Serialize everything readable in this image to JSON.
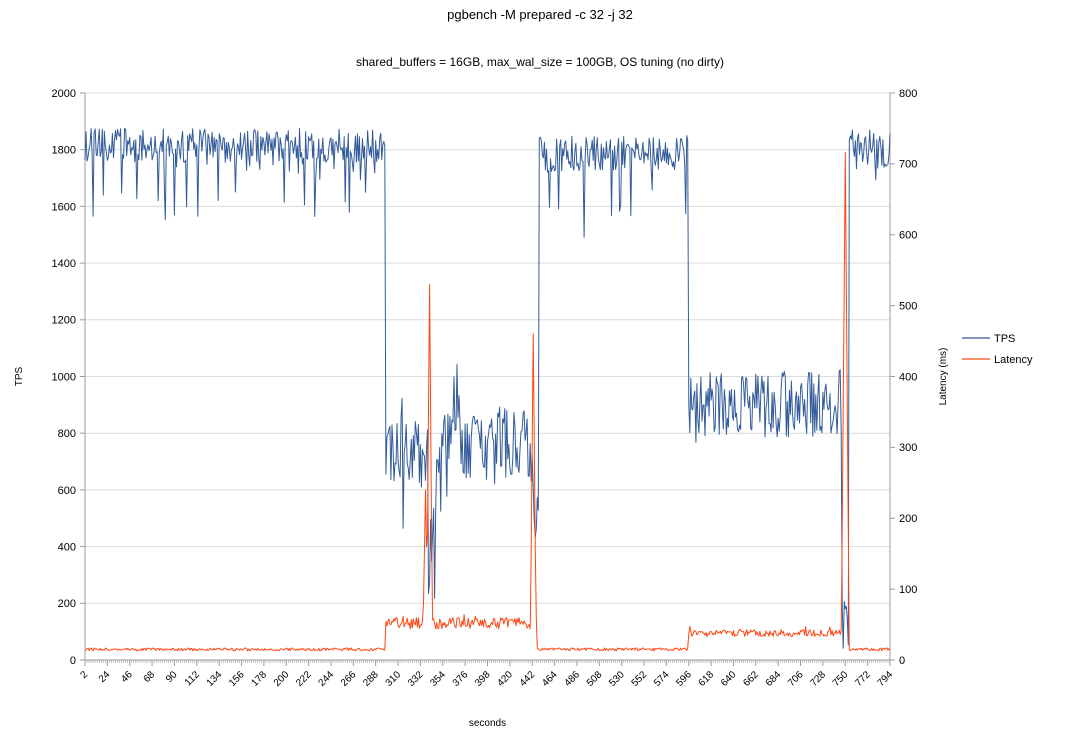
{
  "chart_data": {
    "type": "line",
    "title": "pgbench -M prepared -c 32 -j 32",
    "subtitle": "shared_buffers = 16GB, max_wal_size = 100GB, OS tuning (no dirty)",
    "xlabel": "seconds",
    "ylabel_left": "TPS",
    "ylabel_right": "Latency (ms)",
    "x_range": [
      2,
      794
    ],
    "x_step": 1,
    "x_minor_tick_step": 2,
    "x_tick_labels": [
      2,
      24,
      46,
      68,
      90,
      112,
      134,
      156,
      178,
      200,
      222,
      244,
      266,
      288,
      310,
      332,
      354,
      376,
      398,
      420,
      442,
      464,
      486,
      508,
      530,
      552,
      574,
      596,
      618,
      640,
      662,
      684,
      706,
      728,
      750,
      772,
      794
    ],
    "ylim_left": [
      0,
      2000
    ],
    "y_tick_labels_left": [
      0,
      200,
      400,
      600,
      800,
      1000,
      1200,
      1400,
      1600,
      1800,
      2000
    ],
    "ylim_right": [
      0,
      800
    ],
    "y_tick_labels_right": [
      0,
      100,
      200,
      300,
      400,
      500,
      600,
      700,
      800
    ],
    "grid": "horizontal",
    "legend": {
      "position": "right",
      "entries": [
        "TPS",
        "Latency"
      ]
    },
    "colors": {
      "grid": "#dcdcdc",
      "axis": "#9c9c9c",
      "text": "#000000",
      "tps": "#335b9b",
      "latency": "#ff4713"
    },
    "series": [
      {
        "name": "TPS",
        "axis": "left",
        "color": "#335b9b",
        "segments": [
          {
            "from": 2,
            "to": 297,
            "base": 1815,
            "noise": 60,
            "dip_chance": 0.1,
            "dip_depth": 260
          },
          {
            "from": 298,
            "to": 339,
            "base": 755,
            "noise": 130,
            "dip_chance": 0.05,
            "dip_depth": 220,
            "up_chance": 0.04,
            "up_height": 200
          },
          {
            "from": 340,
            "to": 347,
            "base": 380,
            "noise": 180
          },
          {
            "from": 348,
            "to": 442,
            "base": 760,
            "noise": 130,
            "dip_chance": 0.05,
            "dip_depth": 230,
            "up_chance": 0.04,
            "up_height": 220
          },
          {
            "from": 443,
            "to": 448,
            "base": 560,
            "noise": 160
          },
          {
            "from": 449,
            "to": 595,
            "base": 1785,
            "noise": 65,
            "dip_chance": 0.1,
            "dip_depth": 280
          },
          {
            "from": 596,
            "to": 746,
            "base": 905,
            "noise": 120,
            "dip_chance": 0.05,
            "dip_depth": 210,
            "up_chance": 0.05,
            "up_height": 210
          },
          {
            "from": 747,
            "to": 753,
            "base": 120,
            "noise": 90
          },
          {
            "from": 754,
            "to": 794,
            "base": 1800,
            "noise": 70,
            "dip_chance": 0.12,
            "dip_depth": 280
          }
        ]
      },
      {
        "name": "Latency",
        "axis": "right",
        "color": "#ff4713",
        "segments": [
          {
            "from": 2,
            "to": 297,
            "base": 15,
            "noise": 2
          },
          {
            "from": 298,
            "to": 446,
            "base": 52,
            "noise": 8,
            "up_chance": 0.05,
            "up_height": 18
          },
          {
            "from": 447,
            "to": 595,
            "base": 15,
            "noise": 2
          },
          {
            "from": 596,
            "to": 747,
            "base": 38,
            "noise": 5,
            "up_chance": 0.05,
            "up_height": 14
          },
          {
            "from": 748,
            "to": 794,
            "base": 15,
            "noise": 2
          }
        ],
        "spikes": [
          {
            "x": 337,
            "peak": 240,
            "width": 3
          },
          {
            "x": 341,
            "peak": 530,
            "width": 3
          },
          {
            "x": 443,
            "peak": 460,
            "width": 3
          },
          {
            "x": 750,
            "peak": 716,
            "width": 4
          }
        ]
      }
    ]
  }
}
